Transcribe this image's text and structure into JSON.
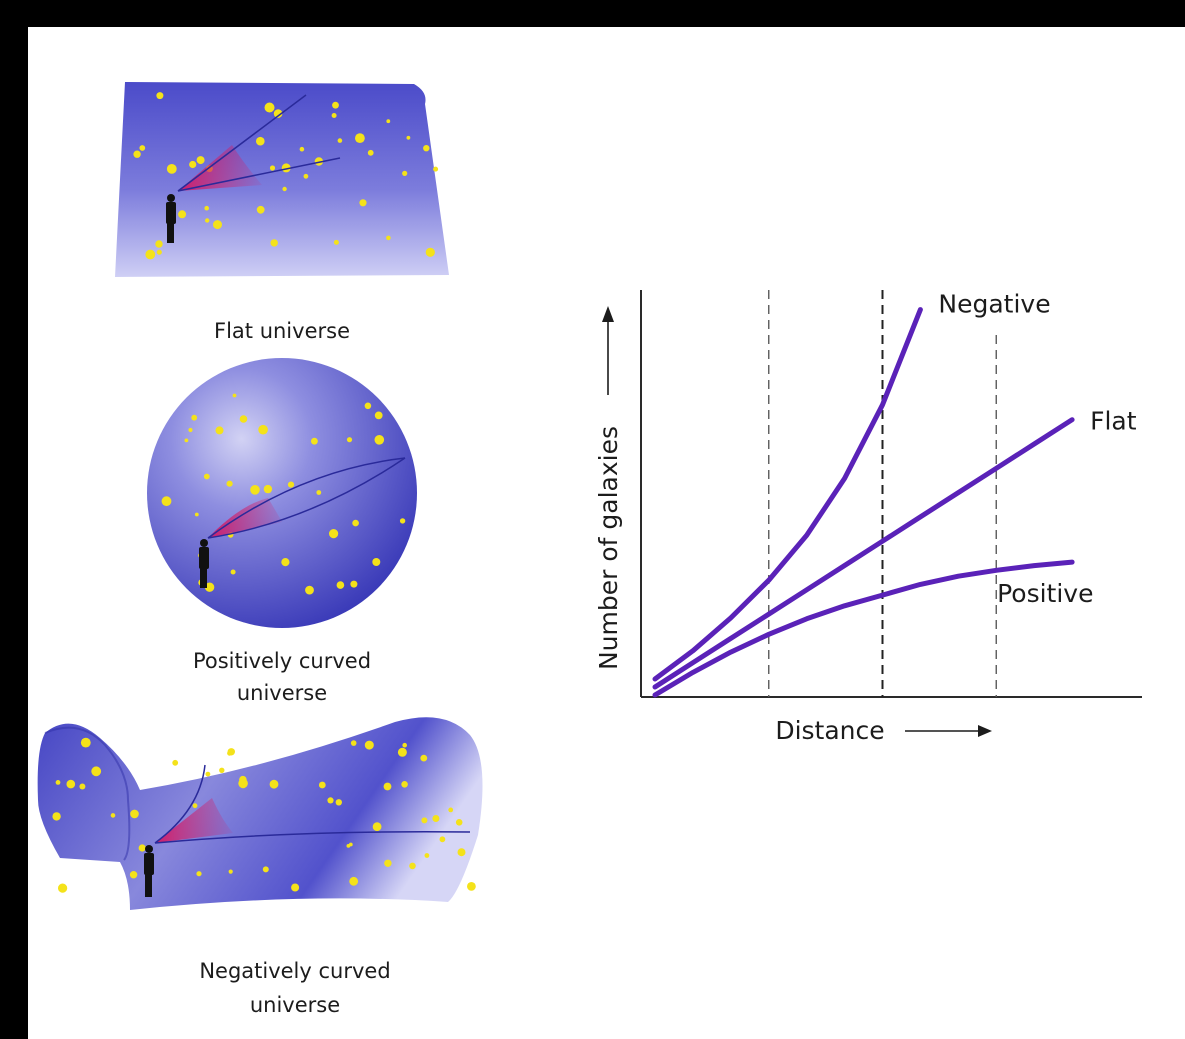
{
  "panels": [
    {
      "id": "flat",
      "caption_lines": [
        "Flat universe"
      ]
    },
    {
      "id": "positive",
      "caption_lines": [
        "Positively curved",
        "universe"
      ]
    },
    {
      "id": "negative",
      "caption_lines": [
        "Negatively curved",
        "universe"
      ]
    }
  ],
  "colors": {
    "frame": "#000000",
    "paper": "#ffffff",
    "surface_light": "#c9c9f4",
    "surface_dark": "#4747c7",
    "star": "#f4e21a",
    "cone": "#c8286e",
    "curve": "#5a22b8",
    "axis": "#2a2a2a"
  },
  "chart_data": {
    "type": "line",
    "xlabel": "Distance",
    "ylabel": "Number of galaxies",
    "series": [
      {
        "name": "Negative",
        "x": [
          0,
          1,
          2,
          3,
          4,
          5,
          6,
          7
        ],
        "y": [
          0,
          1.2,
          2.6,
          4.2,
          6.1,
          8.5,
          11.6,
          15.6
        ]
      },
      {
        "name": "Flat",
        "x": [
          0,
          1,
          2,
          3,
          4,
          5,
          6,
          7,
          8,
          9,
          10,
          11
        ],
        "y": [
          0,
          1.0,
          2.0,
          3.0,
          4.0,
          5.0,
          6.0,
          7.0,
          8.0,
          9.0,
          10.0,
          11.0
        ]
      },
      {
        "name": "Positive",
        "x": [
          0,
          1,
          2,
          3,
          4,
          5,
          6,
          7,
          8,
          9,
          10,
          11
        ],
        "y": [
          0,
          0.9,
          1.7,
          2.4,
          3.0,
          3.5,
          3.9,
          4.3,
          4.6,
          4.8,
          4.95,
          5.05
        ]
      }
    ],
    "reference_lines_x": [
      3,
      6,
      9
    ],
    "xlim": [
      0,
      12
    ],
    "ylim": [
      0,
      16
    ]
  }
}
